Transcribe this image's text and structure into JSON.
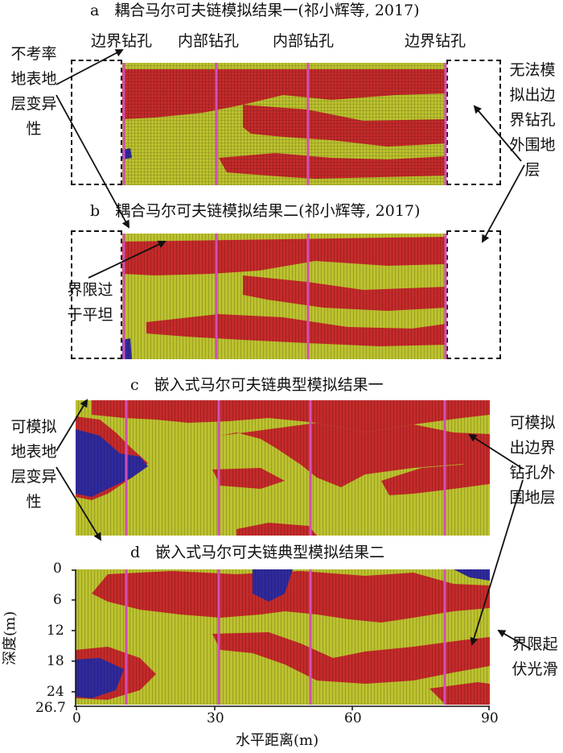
{
  "colors": {
    "red": "#c42a2a",
    "yellow": "#bcc22e",
    "blue": "#2f2a9c",
    "borehole": "#d050b8"
  },
  "titles": {
    "a": "a　耦合马尔可夫链模拟结果一(祁小辉等, 2017)",
    "b": "b　耦合马尔可夫链模拟结果二(祁小辉等, 2017)",
    "c": "c　嵌入式马尔可夫链典型模拟结果一",
    "d": "d　嵌入式马尔可夫链典型模拟结果二"
  },
  "borehole_labels": [
    "边界钻孔",
    "内部钻孔",
    "内部钻孔",
    "边界钻孔"
  ],
  "annotations": {
    "no_variability": "不考率地表地层变异性",
    "cannot_simulate": "无法模拟出边界钻孔外围地层",
    "flat_boundary": "界限过于平坦",
    "can_variability": "可模拟地表地层变异性",
    "can_simulate": "可模拟出边界钻孔外围地层",
    "smooth_boundary": "界限起伏光滑"
  },
  "axes": {
    "ylabel": "深度(m)",
    "xlabel": "水平距离(m)",
    "yticks": [
      "0",
      "6",
      "12",
      "18",
      "24",
      "26.7"
    ],
    "xticks": [
      "0",
      "30",
      "60",
      "90"
    ]
  }
}
